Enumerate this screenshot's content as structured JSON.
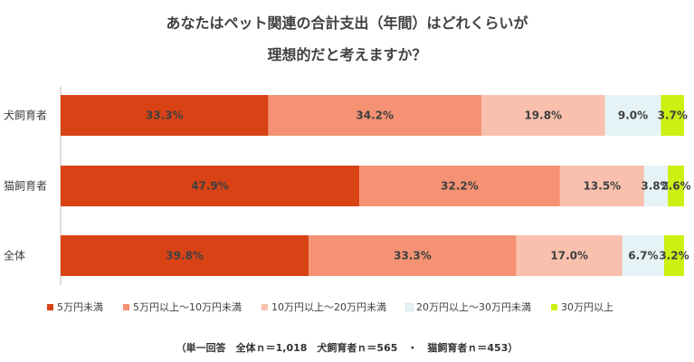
{
  "title_line1": "あなたはペット関連の合計支出（年間）はどれくらいが",
  "title_line2": "理想的だと考えますか？",
  "chart_data": {
    "type": "bar",
    "orientation": "horizontal",
    "stacked": true,
    "percent_stacked": true,
    "categories": [
      "犬飼育者",
      "猫飼育者",
      "全体"
    ],
    "series": [
      {
        "name": "5万円未満",
        "color": "#d94215",
        "values": [
          33.3,
          47.9,
          39.8
        ],
        "labels": [
          "33.3%",
          "47.9%",
          "39.8%"
        ]
      },
      {
        "name": "5万円以上～10万円未満",
        "color": "#f49273",
        "values": [
          34.2,
          32.2,
          33.3
        ],
        "labels": [
          "34.2%",
          "32.2%",
          "33.3%"
        ]
      },
      {
        "name": "10万円以上～20万円未満",
        "color": "#f8c0ad",
        "values": [
          19.8,
          13.5,
          17.0
        ],
        "labels": [
          "19.8%",
          "13.5%",
          "17.0%"
        ]
      },
      {
        "name": "20万円以上～30万円未満",
        "color": "#e6f3f6",
        "values": [
          9.0,
          3.8,
          6.7
        ],
        "labels": [
          "9.0%",
          "3.8%",
          "6.7%"
        ]
      },
      {
        "name": "30万円以上",
        "color": "#ccf010",
        "values": [
          3.7,
          2.6,
          3.2
        ],
        "labels": [
          "3.7%",
          "2.6%",
          "3.2%"
        ]
      }
    ],
    "xlim": [
      0,
      100
    ],
    "grid": false,
    "legend_position": "bottom"
  },
  "note": "（単一回答　全体ｎ＝1,018　犬飼育者ｎ＝565　・　猫飼育者ｎ＝453）"
}
